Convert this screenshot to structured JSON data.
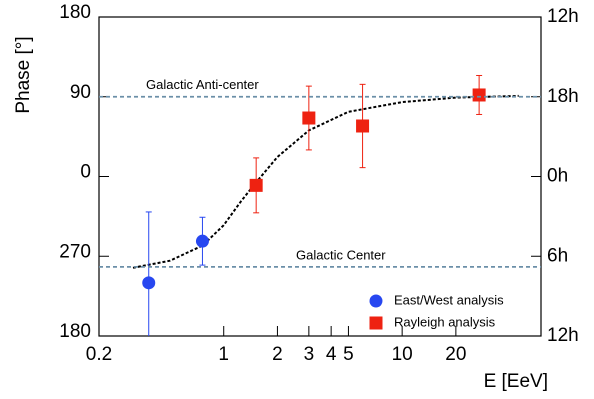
{
  "chart_data": {
    "type": "scatter",
    "xlabel": "E [EeV]",
    "ylabel": "Phase [°]",
    "xscale": "log",
    "xlim": [
      0.2,
      60
    ],
    "xticks": [
      0.2,
      1,
      2,
      3,
      4,
      5,
      10,
      20
    ],
    "ylim": [
      -180,
      180
    ],
    "yticks": [
      {
        "value": -180,
        "label": "180"
      },
      {
        "value": -90,
        "label": "270"
      },
      0,
      90,
      180
    ],
    "y2lim": [
      -180,
      180
    ],
    "y2ticks": [
      {
        "value": -180,
        "label": "12h"
      },
      {
        "value": -90,
        "label": "6h"
      },
      {
        "value": 0,
        "label": "0h"
      },
      {
        "value": 90,
        "label": "18h"
      },
      {
        "value": 180,
        "label": "12h"
      }
    ],
    "series": [
      {
        "name": "East/West analysis",
        "color": "#2747f0",
        "marker": "circle",
        "x": [
          0.38,
          0.76
        ],
        "values": [
          -120,
          -73
        ],
        "errors": [
          80,
          27
        ]
      },
      {
        "name": "Rayleigh analysis",
        "color": "#ee2211",
        "marker": "square",
        "x": [
          1.52,
          3.0,
          6.0,
          27
        ],
        "values": [
          -10,
          66,
          57,
          92
        ],
        "errors": [
          31,
          36,
          47,
          22
        ]
      }
    ],
    "fit": {
      "color": "#000000",
      "x": [
        0.31,
        0.5,
        0.76,
        1,
        1.25,
        1.5,
        2,
        3,
        5,
        10,
        20,
        45
      ],
      "values": [
        -103,
        -95,
        -78,
        -55,
        -28,
        -8,
        22,
        52,
        73,
        84,
        89,
        91
      ]
    },
    "reference_lines": [
      {
        "value": 90,
        "label": "Galactic Anti-center",
        "color": "#6b8fa8"
      },
      {
        "value": -102,
        "label": "Galactic Center",
        "color": "#6b8fa8"
      }
    ],
    "legend": "lower right"
  }
}
